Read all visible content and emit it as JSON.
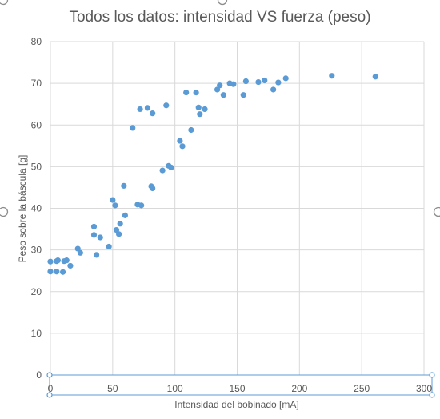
{
  "chart_data": {
    "type": "scatter",
    "title": "Todos los datos: intensidad VS fuerza (peso)",
    "xlabel": "Intensidad del bobinado [mA]",
    "ylabel": "Peso sobre la báscula [g]",
    "xlim": [
      0,
      300
    ],
    "ylim": [
      0,
      80
    ],
    "xticks": [
      0,
      50,
      100,
      150,
      200,
      250,
      300
    ],
    "yticks": [
      0,
      10,
      20,
      30,
      40,
      50,
      60,
      70,
      80
    ],
    "grid": true,
    "legend": "none",
    "marker_color": "#5b9bd5",
    "series": [
      {
        "points": [
          [
            0,
            27.2
          ],
          [
            0,
            24.8
          ],
          [
            5,
            27.3
          ],
          [
            6,
            27.5
          ],
          [
            5,
            24.8
          ],
          [
            10,
            24.7
          ],
          [
            11,
            27.3
          ],
          [
            13,
            27.5
          ],
          [
            16,
            26.2
          ],
          [
            22,
            30.3
          ],
          [
            24,
            29.3
          ],
          [
            35,
            35.6
          ],
          [
            35,
            33.6
          ],
          [
            37,
            28.8
          ],
          [
            40,
            33.0
          ],
          [
            47,
            30.8
          ],
          [
            50,
            42.0
          ],
          [
            52,
            40.7
          ],
          [
            53,
            34.8
          ],
          [
            55,
            33.8
          ],
          [
            56,
            36.3
          ],
          [
            59,
            45.4
          ],
          [
            60,
            38.3
          ],
          [
            66,
            59.3
          ],
          [
            70,
            40.9
          ],
          [
            73,
            40.7
          ],
          [
            72,
            63.8
          ],
          [
            78,
            64.1
          ],
          [
            81,
            45.3
          ],
          [
            82,
            44.8
          ],
          [
            82,
            62.8
          ],
          [
            90,
            49.1
          ],
          [
            93,
            64.7
          ],
          [
            95,
            50.2
          ],
          [
            97,
            49.8
          ],
          [
            104,
            56.2
          ],
          [
            106,
            54.9
          ],
          [
            109,
            67.8
          ],
          [
            113,
            58.8
          ],
          [
            117,
            67.8
          ],
          [
            119,
            64.2
          ],
          [
            120,
            62.6
          ],
          [
            124,
            63.8
          ],
          [
            134,
            68.5
          ],
          [
            136,
            69.5
          ],
          [
            139,
            67.2
          ],
          [
            144,
            70.0
          ],
          [
            147,
            69.8
          ],
          [
            155,
            67.2
          ],
          [
            157,
            70.5
          ],
          [
            167,
            70.3
          ],
          [
            172,
            70.7
          ],
          [
            179,
            68.5
          ],
          [
            183,
            70.2
          ],
          [
            189,
            71.2
          ],
          [
            226,
            71.8
          ],
          [
            261,
            71.6
          ]
        ]
      }
    ]
  }
}
